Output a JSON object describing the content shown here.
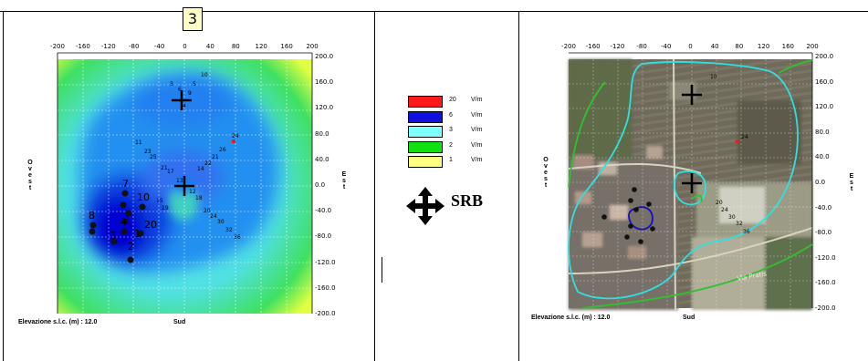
{
  "page": {
    "tag": "3"
  },
  "plot_left": {
    "x_ticks": [
      "-200",
      "-160",
      "-120",
      "-80",
      "-40",
      "0",
      "40",
      "80",
      "120",
      "160",
      "200"
    ],
    "y_ticks": [
      "200.0",
      "160.0",
      "120.0",
      "80.0",
      "40.0",
      "0.0",
      "-40.0",
      "-80.0",
      "-120.0",
      "-160.0",
      "-200.0"
    ],
    "side_west": "Ovest",
    "side_east": "Est",
    "footer_elev": "Elevazione s.l.c. (m) : 12.0",
    "footer_south": "Sud"
  },
  "plot_right": {
    "x_ticks": [
      "-200",
      "-160",
      "-120",
      "-80",
      "-40",
      "0",
      "40",
      "80",
      "120",
      "160",
      "200"
    ],
    "y_ticks": [
      "200.0",
      "160.0",
      "120.0",
      "80.0",
      "40.0",
      "0.0",
      "-40.0",
      "-80.0",
      "-120.0",
      "-160.0",
      "-200.0"
    ],
    "side_west": "Ovest",
    "side_east": "Est",
    "footer_elev": "Elevazione s.l.c. (m) : 12.0",
    "footer_south": "Sud",
    "map_text": "Via Pratis"
  },
  "legend": {
    "items": [
      {
        "value": "20",
        "unit": "V/m",
        "color": "#ff1a1a"
      },
      {
        "value": "6",
        "unit": "V/m",
        "color": "#1010e0"
      },
      {
        "value": "3",
        "unit": "V/m",
        "color": "#80ffff"
      },
      {
        "value": "2",
        "unit": "V/m",
        "color": "#10e010"
      },
      {
        "value": "1",
        "unit": "V/m",
        "color": "#ffff80"
      }
    ],
    "srb_label": "SRB",
    "srb_icon": "four-way-arrow-icon"
  },
  "points": {
    "cluster_labels": [
      "7",
      "10",
      "8",
      "4",
      "3",
      "2",
      "20",
      "1"
    ],
    "path_labels": [
      "10",
      "5",
      "6",
      "9",
      "4",
      "11",
      "24",
      "26",
      "23",
      "25",
      "21",
      "22",
      "13",
      "14",
      "17",
      "18",
      "12",
      "19",
      "15",
      "16",
      "20",
      "24",
      "30",
      "32",
      "36"
    ]
  },
  "colors": {
    "field_low": "#ffff60",
    "field_mid": "#10e010",
    "field_high": "#80ffff",
    "field_max": "#1010e0",
    "contour_cyan": "#30e0e0",
    "contour_green": "#30c030",
    "contour_blue": "#1010c0"
  }
}
